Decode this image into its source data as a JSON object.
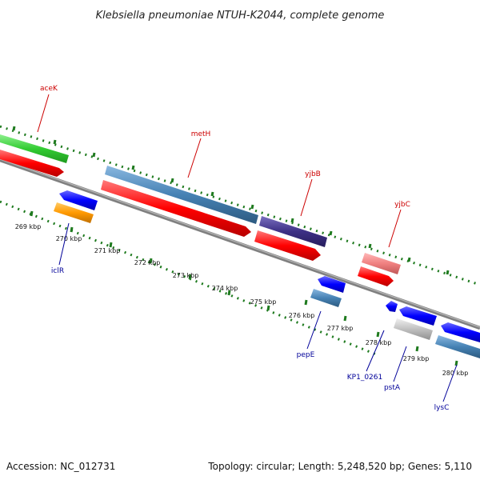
{
  "title": "Klebsiella pneumoniae NTUH-K2044, complete genome",
  "footer": {
    "accession": "Accession: NC_012731",
    "summary": "Topology: circular; Length: 5,248,520 bp; Genes: 5,110"
  },
  "scale": {
    "ticks": [
      {
        "label": "269 kbp",
        "kbp": 269
      },
      {
        "label": "270 kbp",
        "kbp": 270
      },
      {
        "label": "271 kbp",
        "kbp": 271
      },
      {
        "label": "272 kbp",
        "kbp": 272
      },
      {
        "label": "273 kbp",
        "kbp": 273
      },
      {
        "label": "274 kbp",
        "kbp": 274
      },
      {
        "label": "275 kbp",
        "kbp": 275
      },
      {
        "label": "276 kbp",
        "kbp": 276
      },
      {
        "label": "277 kbp",
        "kbp": 277
      },
      {
        "label": "278 kbp",
        "kbp": 278
      },
      {
        "label": "279 kbp",
        "kbp": 279
      },
      {
        "label": "280 kbp",
        "kbp": 280
      }
    ]
  },
  "genes": [
    {
      "name": "aceK",
      "color": "#cc0000"
    },
    {
      "name": "metH",
      "color": "#cc0000"
    },
    {
      "name": "yjbB",
      "color": "#cc0000"
    },
    {
      "name": "yjbC",
      "color": "#cc0000"
    },
    {
      "name": "iclR",
      "color": "#000099"
    },
    {
      "name": "pepE",
      "color": "#000099"
    },
    {
      "name": "KP1_0261",
      "color": "#000099"
    },
    {
      "name": "pstA",
      "color": "#000099"
    },
    {
      "name": "lysC",
      "color": "#000099"
    }
  ],
  "colors": {
    "backbone": "#808080",
    "dotted_ring": "#1e7a1e",
    "green_feature": "#33cc33",
    "red_cds": "#ff0000",
    "steel_cds": "#4682b4",
    "navy_cds": "#3d3085",
    "pink_cds": "#f08080",
    "blue_cds": "#0000ff",
    "orange_cds": "#ff9900",
    "gray_cds": "#c0c0c0"
  }
}
